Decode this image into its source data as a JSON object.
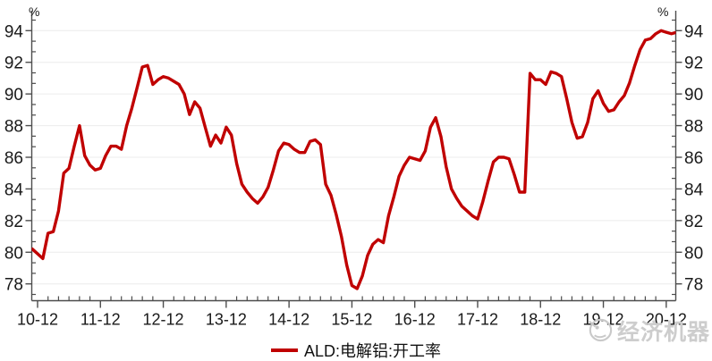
{
  "axes": {
    "left_unit": "%",
    "right_unit": "%"
  },
  "legend": {
    "label": "ALD:电解铝:开工率",
    "color": "#C00000"
  },
  "watermark": {
    "text": "经济机器"
  },
  "chart_data": {
    "type": "line",
    "legend_position": "bottom-center",
    "grid": "horizontal-light",
    "x_axis": {
      "tick_labels": [
        "10-12",
        "11-12",
        "12-12",
        "13-12",
        "14-12",
        "15-12",
        "16-12",
        "17-12",
        "18-12",
        "19-12",
        "20-12"
      ],
      "minor_tick_interval_months": 2
    },
    "y_axis": {
      "ticks": [
        78,
        80,
        82,
        84,
        86,
        88,
        90,
        92,
        94
      ],
      "unit": "%",
      "ylim": [
        77.3,
        94.7
      ],
      "mirrored_right": true
    },
    "series": [
      {
        "name": "ALD:电解铝:开工率",
        "color": "#C00000",
        "x": [
          "2010-11",
          "2010-12",
          "2011-01",
          "2011-02",
          "2011-03",
          "2011-04",
          "2011-05",
          "2011-06",
          "2011-07",
          "2011-08",
          "2011-09",
          "2011-10",
          "2011-11",
          "2011-12",
          "2012-01",
          "2012-02",
          "2012-03",
          "2012-04",
          "2012-05",
          "2012-06",
          "2012-07",
          "2012-08",
          "2012-09",
          "2012-10",
          "2012-11",
          "2012-12",
          "2013-01",
          "2013-02",
          "2013-03",
          "2013-04",
          "2013-05",
          "2013-06",
          "2013-07",
          "2013-08",
          "2013-09",
          "2013-10",
          "2013-11",
          "2013-12",
          "2014-01",
          "2014-02",
          "2014-03",
          "2014-04",
          "2014-05",
          "2014-06",
          "2014-07",
          "2014-08",
          "2014-09",
          "2014-10",
          "2014-11",
          "2014-12",
          "2015-01",
          "2015-02",
          "2015-03",
          "2015-04",
          "2015-05",
          "2015-06",
          "2015-07",
          "2015-08",
          "2015-09",
          "2015-10",
          "2015-11",
          "2015-12",
          "2016-01",
          "2016-02",
          "2016-03",
          "2016-04",
          "2016-05",
          "2016-06",
          "2016-07",
          "2016-08",
          "2016-09",
          "2016-10",
          "2016-11",
          "2016-12",
          "2017-01",
          "2017-02",
          "2017-03",
          "2017-04",
          "2017-05",
          "2017-06",
          "2017-07",
          "2017-08",
          "2017-09",
          "2017-10",
          "2017-11",
          "2017-12",
          "2018-01",
          "2018-02",
          "2018-03",
          "2018-04",
          "2018-05",
          "2018-06",
          "2018-07",
          "2018-08",
          "2018-09",
          "2018-10",
          "2018-11",
          "2018-12",
          "2019-01",
          "2019-02",
          "2019-03",
          "2019-04",
          "2019-05",
          "2019-06",
          "2019-07",
          "2019-08",
          "2019-09",
          "2019-10",
          "2019-11",
          "2019-12",
          "2020-01",
          "2020-02",
          "2020-03",
          "2020-04",
          "2020-05",
          "2020-06",
          "2020-07",
          "2020-08",
          "2020-09",
          "2020-10",
          "2020-11",
          "2020-12",
          "2021-01",
          "2021-02"
        ],
        "values": [
          80.2,
          79.9,
          79.6,
          81.2,
          81.3,
          82.6,
          85.0,
          85.3,
          86.7,
          88.0,
          86.1,
          85.5,
          85.2,
          85.3,
          86.1,
          86.7,
          86.7,
          86.5,
          88.0,
          89.1,
          90.4,
          91.7,
          91.8,
          90.6,
          90.9,
          91.1,
          91.0,
          90.8,
          90.6,
          90.0,
          88.7,
          89.5,
          89.1,
          87.9,
          86.7,
          87.4,
          86.9,
          87.9,
          87.4,
          85.6,
          84.3,
          83.8,
          83.4,
          83.1,
          83.5,
          84.1,
          85.2,
          86.4,
          86.9,
          86.8,
          86.5,
          86.3,
          86.3,
          87.0,
          87.1,
          86.8,
          84.3,
          83.6,
          82.4,
          81.0,
          79.2,
          77.9,
          77.7,
          78.5,
          79.8,
          80.5,
          80.8,
          80.6,
          82.3,
          83.5,
          84.8,
          85.5,
          86.0,
          85.9,
          85.8,
          86.4,
          87.9,
          88.5,
          87.3,
          85.4,
          84.0,
          83.4,
          82.9,
          82.6,
          82.3,
          82.1,
          83.2,
          84.5,
          85.7,
          86.0,
          86.0,
          85.9,
          84.9,
          83.8,
          83.8,
          91.3,
          90.9,
          90.9,
          90.6,
          91.4,
          91.3,
          91.1,
          89.7,
          88.2,
          87.2,
          87.3,
          88.2,
          89.7,
          90.2,
          89.4,
          88.9,
          89.0,
          89.5,
          89.9,
          90.7,
          91.8,
          92.8,
          93.4,
          93.5,
          93.8,
          94.0,
          93.9,
          93.8,
          93.9
        ]
      }
    ]
  }
}
